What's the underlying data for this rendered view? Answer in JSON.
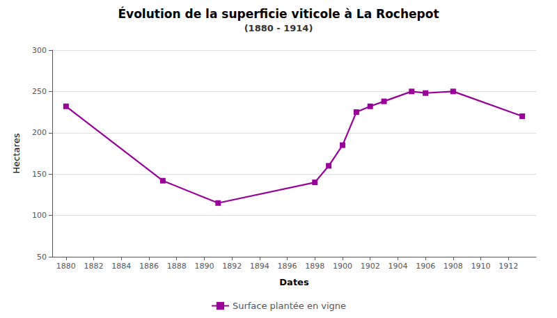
{
  "chart_data": {
    "type": "line",
    "title": "Évolution de la superficie viticole à La Rochepot",
    "subtitle": "(1880 - 1914)",
    "xlabel": "Dates",
    "ylabel": "Hectares",
    "x": [
      1880,
      1887,
      1891,
      1898,
      1899,
      1900,
      1901,
      1902,
      1903,
      1905,
      1906,
      1908,
      1913
    ],
    "series": [
      {
        "name": "Surface plantée en vigne",
        "color": "#990099",
        "marker": "square",
        "values": [
          232,
          142,
          115,
          140,
          160,
          185,
          225,
          232,
          238,
          250,
          248,
          250,
          220
        ]
      }
    ],
    "xlim": [
      1879,
      1914
    ],
    "xticks": [
      1880,
      1882,
      1884,
      1886,
      1888,
      1890,
      1892,
      1894,
      1896,
      1898,
      1900,
      1902,
      1904,
      1906,
      1908,
      1910,
      1912
    ],
    "ylim": [
      50,
      300
    ],
    "yticks": [
      50,
      100,
      150,
      200,
      250,
      300
    ],
    "grid": true,
    "legend": "bottom"
  }
}
